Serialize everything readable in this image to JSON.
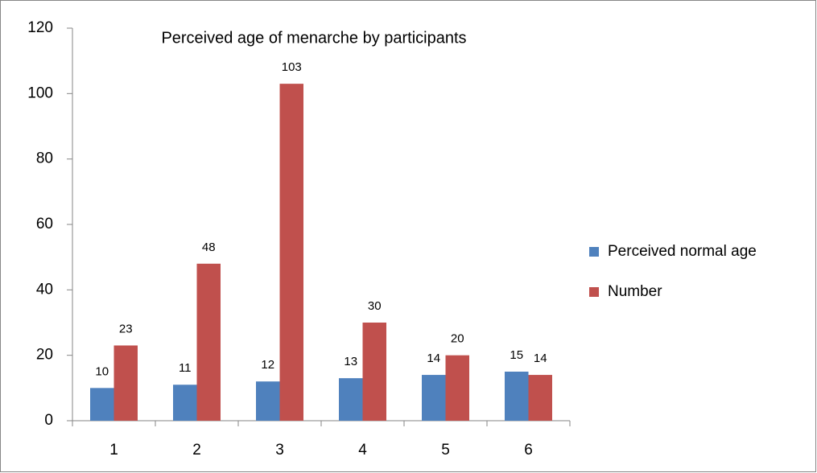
{
  "chart_data": {
    "type": "bar",
    "title": "Perceived age of menarche by participants",
    "categories": [
      "1",
      "2",
      "3",
      "4",
      "5",
      "6"
    ],
    "series": [
      {
        "name": "Perceived normal age",
        "color": "#4f81bd",
        "values": [
          10,
          11,
          12,
          13,
          14,
          15
        ]
      },
      {
        "name": "Number",
        "color": "#c0504d",
        "values": [
          23,
          48,
          103,
          30,
          20,
          14
        ]
      }
    ],
    "ylim": [
      0,
      120
    ],
    "yticks": [
      0,
      20,
      40,
      60,
      80,
      100,
      120
    ],
    "grid": false,
    "legend": "right"
  }
}
